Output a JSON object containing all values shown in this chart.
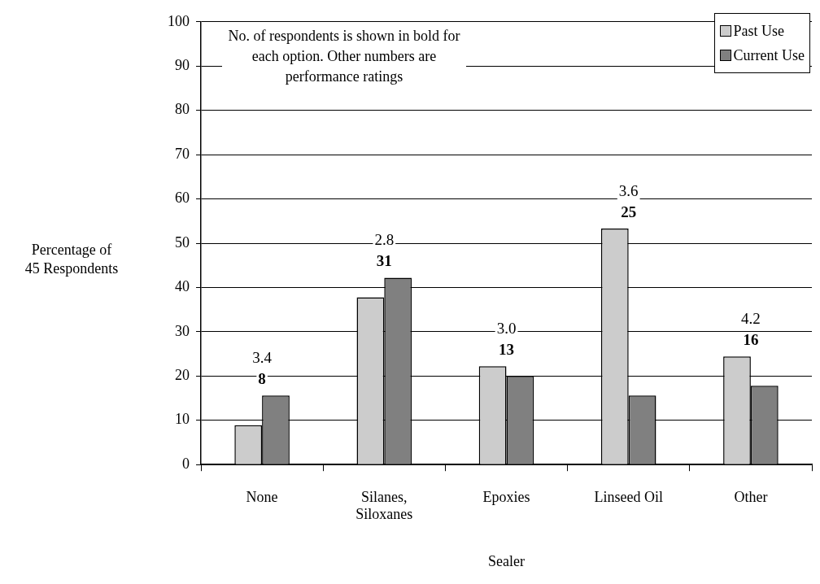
{
  "chart_data": {
    "type": "bar",
    "xlabel": "Sealer",
    "ylabel": "Percentage of\n45 Respondents",
    "categories": [
      "None",
      "Silanes, Siloxanes",
      "Epoxies",
      "Linseed Oil",
      "Other"
    ],
    "series": [
      {
        "name": "Past Use",
        "color": "#cccccc",
        "values": [
          8.9,
          37.8,
          22.2,
          53.3,
          24.4
        ]
      },
      {
        "name": "Current Use",
        "color": "#808080",
        "values": [
          15.6,
          42.2,
          20.0,
          15.6,
          17.8
        ]
      }
    ],
    "ylim": [
      0,
      100
    ],
    "yticks": [
      0,
      10,
      20,
      30,
      40,
      50,
      60,
      70,
      80,
      90,
      100
    ],
    "grid": "y",
    "legend": "top right",
    "annotations": [
      "No. of respondents is shown in bold for each option. Other numbers are performance ratings",
      "3.4",
      "8",
      "2.8",
      "31",
      "3.0",
      "13",
      "3.6",
      "25",
      "4.2",
      "16"
    ]
  }
}
